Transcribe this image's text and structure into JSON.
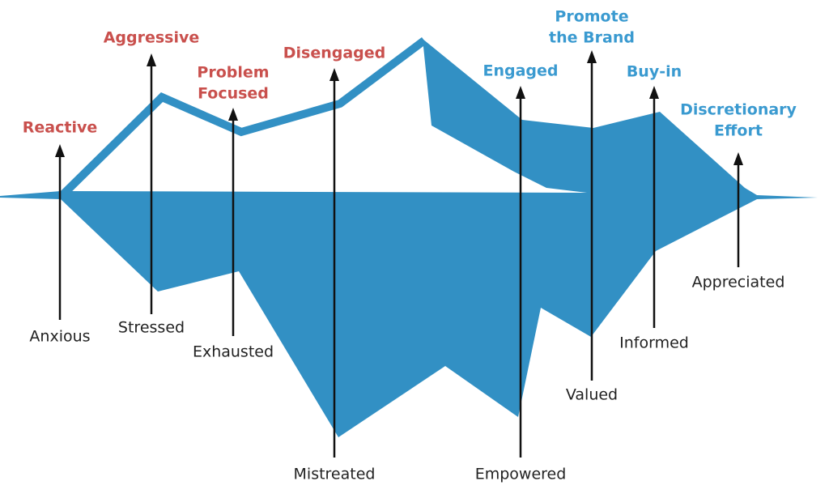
{
  "top_labels": [
    {
      "lines": [
        "Reactive"
      ],
      "color": "#c9504d"
    },
    {
      "lines": [
        "Aggressive"
      ],
      "color": "#c9504d"
    },
    {
      "lines": [
        "Problem",
        "Focused"
      ],
      "color": "#c9504d"
    },
    {
      "lines": [
        "Disengaged"
      ],
      "color": "#c9504d"
    },
    {
      "lines": [
        "Engaged"
      ],
      "color": "#3a9ad0"
    },
    {
      "lines": [
        "Promote",
        "the Brand"
      ],
      "color": "#3a9ad0"
    },
    {
      "lines": [
        "Buy-in"
      ],
      "color": "#3a9ad0"
    },
    {
      "lines": [
        "Discretionary",
        "Effort"
      ],
      "color": "#3a9ad0"
    }
  ],
  "bottom_labels": [
    "Anxious",
    "Stressed",
    "Exhausted",
    "Mistreated",
    "Empowered",
    "Valued",
    "Informed",
    "Appreciated"
  ]
}
